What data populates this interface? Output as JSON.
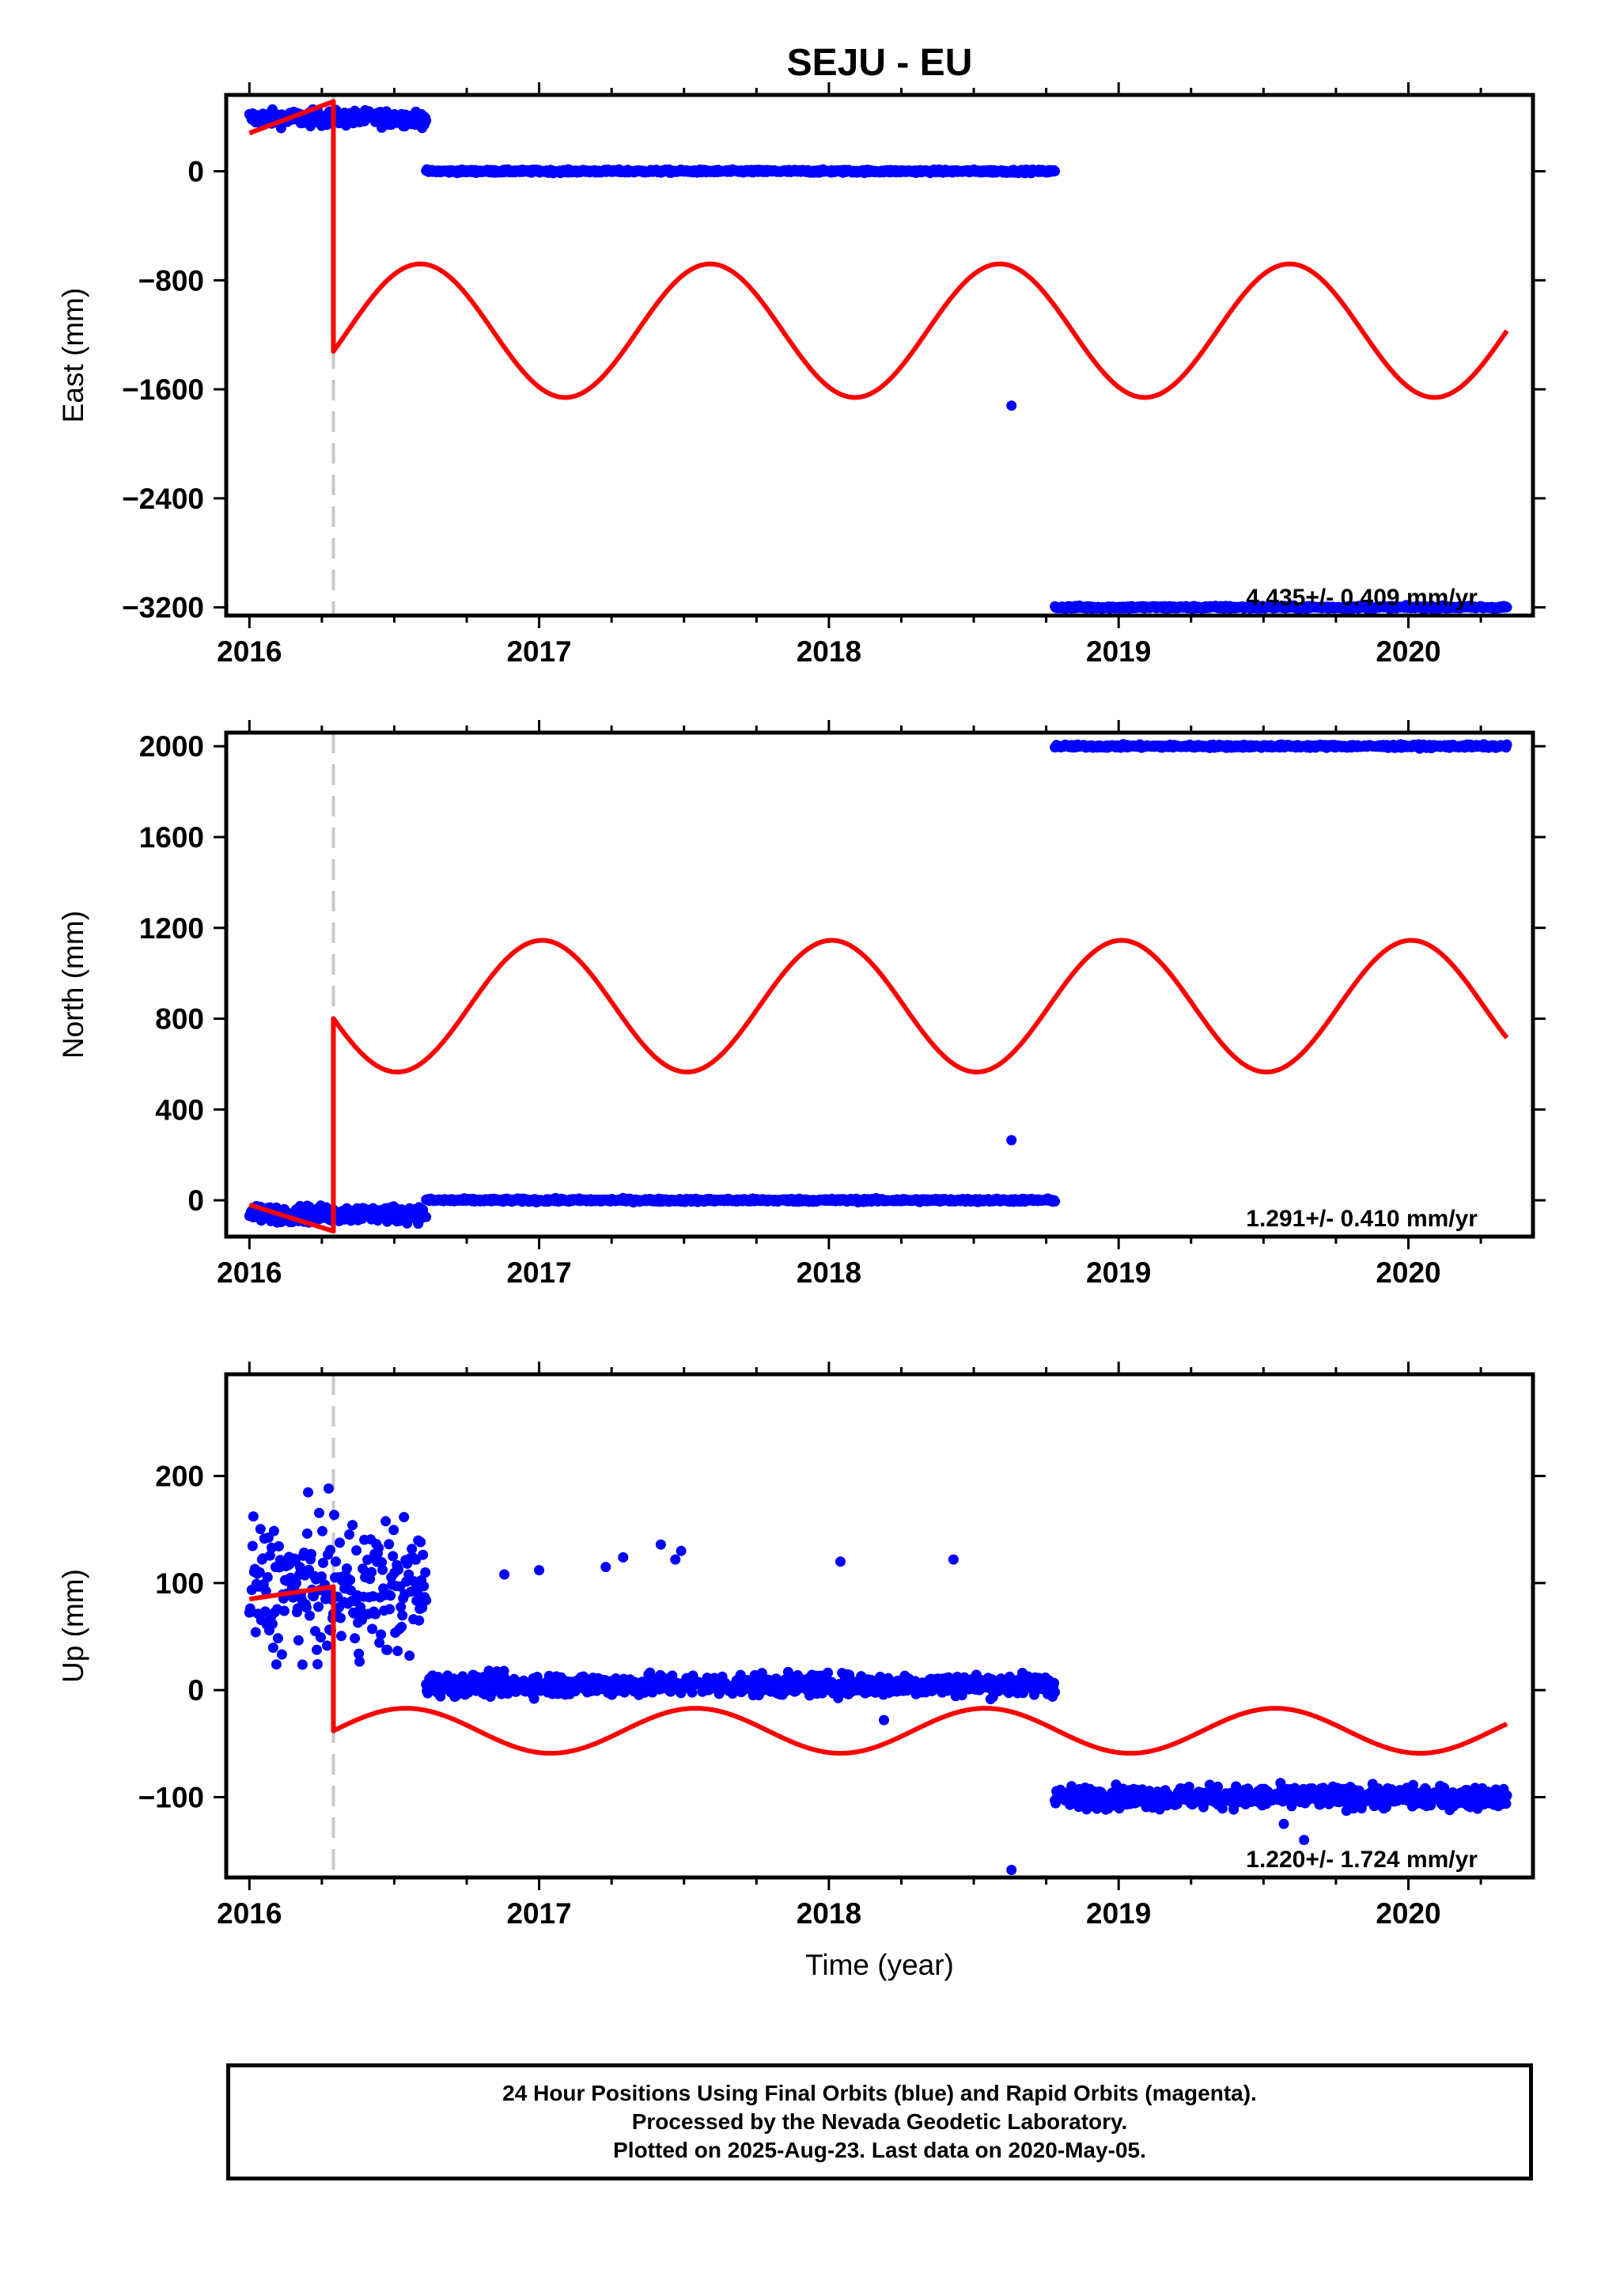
{
  "title": "SEJU - EU",
  "footer": {
    "line1": "24 Hour Positions Using Final Orbits (blue) and Rapid Orbits (magenta).",
    "line2": "Processed by the Nevada Geodetic Laboratory.",
    "line3": "Plotted on 2025-Aug-23. Last data on 2020-May-05."
  },
  "colors": {
    "final_orbits": "#0000ff",
    "model": "#ff0000",
    "equipment_change": "#c8c8c8"
  },
  "chart_data": [
    {
      "type": "scatter",
      "ylabel": "East (mm)",
      "xlim": [
        2015.92,
        2020.43
      ],
      "ylim": [
        -3260,
        560
      ],
      "x_ticks": [
        2016,
        2017,
        2018,
        2019,
        2020
      ],
      "x_tick_labels": [
        "2016",
        "2017",
        "2018",
        "2019",
        "2020"
      ],
      "y_ticks": [
        0,
        -800,
        -1600,
        -2400,
        -3200
      ],
      "y_tick_labels": [
        "0",
        "−800",
        "−1600",
        "−2400",
        "−3200"
      ],
      "rate": "4.435+/- 0.409 mm/yr",
      "equipment_change": 2016.29,
      "segments": [
        {
          "x_start": 2016.0,
          "x_end": 2016.61,
          "y": 390,
          "noise": 40
        },
        {
          "x_start": 2016.61,
          "x_end": 2018.78,
          "y": 0,
          "noise": 8
        },
        {
          "x_start": 2018.78,
          "x_end": 2020.34,
          "y": -3200,
          "noise": 8
        }
      ],
      "outliers": [
        [
          2018.63,
          -1720
        ]
      ],
      "model": {
        "x_start": 2016.0,
        "x_end": 2020.34,
        "break": 2016.29,
        "pre_offset": 280,
        "pre_slope": 800,
        "post_offset": -1170,
        "amplitude": 490,
        "phase": 2016.59
      }
    },
    {
      "type": "scatter",
      "ylabel": "North (mm)",
      "xlim": [
        2015.92,
        2020.43
      ],
      "ylim": [
        -160,
        2060
      ],
      "x_ticks": [
        2016,
        2017,
        2018,
        2019,
        2020
      ],
      "x_tick_labels": [
        "2016",
        "2017",
        "2018",
        "2019",
        "2020"
      ],
      "y_ticks": [
        2000,
        1600,
        1200,
        800,
        400,
        0
      ],
      "y_tick_labels": [
        "2000",
        "1600",
        "1200",
        "800",
        "400",
        "0"
      ],
      "rate": "1.291+/- 0.410 mm/yr",
      "equipment_change": 2016.29,
      "segments": [
        {
          "x_start": 2016.0,
          "x_end": 2016.61,
          "y": -60,
          "noise": 25
        },
        {
          "x_start": 2016.61,
          "x_end": 2018.78,
          "y": 0,
          "noise": 5
        },
        {
          "x_start": 2018.78,
          "x_end": 2020.34,
          "y": 2000,
          "noise": 5
        }
      ],
      "outliers": [
        [
          2018.63,
          265
        ]
      ],
      "model": {
        "x_start": 2016.0,
        "x_end": 2020.34,
        "break": 2016.29,
        "pre_offset": -20,
        "pre_slope": -400,
        "post_offset": 855,
        "amplitude": 290,
        "phase": 2017.01
      }
    },
    {
      "type": "scatter",
      "ylabel": "Up (mm)",
      "xlabel": "Time (year)",
      "xlim": [
        2015.92,
        2020.43
      ],
      "ylim": [
        -175,
        295
      ],
      "x_ticks": [
        2016,
        2017,
        2018,
        2019,
        2020
      ],
      "x_tick_labels": [
        "2016",
        "2017",
        "2018",
        "2019",
        "2020"
      ],
      "y_ticks": [
        200,
        100,
        0,
        -100
      ],
      "y_tick_labels": [
        "200",
        "100",
        "0",
        "−100"
      ],
      "rate": "1.220+/- 1.724 mm/yr",
      "equipment_change": 2016.29,
      "segments": [
        {
          "x_start": 2016.0,
          "x_end": 2016.61,
          "y": 95,
          "noise": 45
        },
        {
          "x_start": 2016.61,
          "x_end": 2018.78,
          "y": 5,
          "noise": 7
        },
        {
          "x_start": 2018.78,
          "x_end": 2020.34,
          "y": -100,
          "noise": 7
        }
      ],
      "outliers": [
        [
          2016.88,
          108
        ],
        [
          2017.0,
          112
        ],
        [
          2017.23,
          115
        ],
        [
          2017.29,
          124
        ],
        [
          2017.42,
          136
        ],
        [
          2017.47,
          122
        ],
        [
          2017.49,
          130
        ],
        [
          2018.04,
          120
        ],
        [
          2018.43,
          122
        ],
        [
          2018.19,
          -28
        ],
        [
          2018.63,
          -168
        ],
        [
          2019.57,
          -125
        ],
        [
          2019.64,
          -140
        ]
      ],
      "model": {
        "x_start": 2016.0,
        "x_end": 2020.34,
        "break": 2016.29,
        "pre_offset": 85,
        "pre_slope": 40,
        "post_offset": -38,
        "amplitude": 21,
        "phase": 2016.54
      }
    }
  ]
}
